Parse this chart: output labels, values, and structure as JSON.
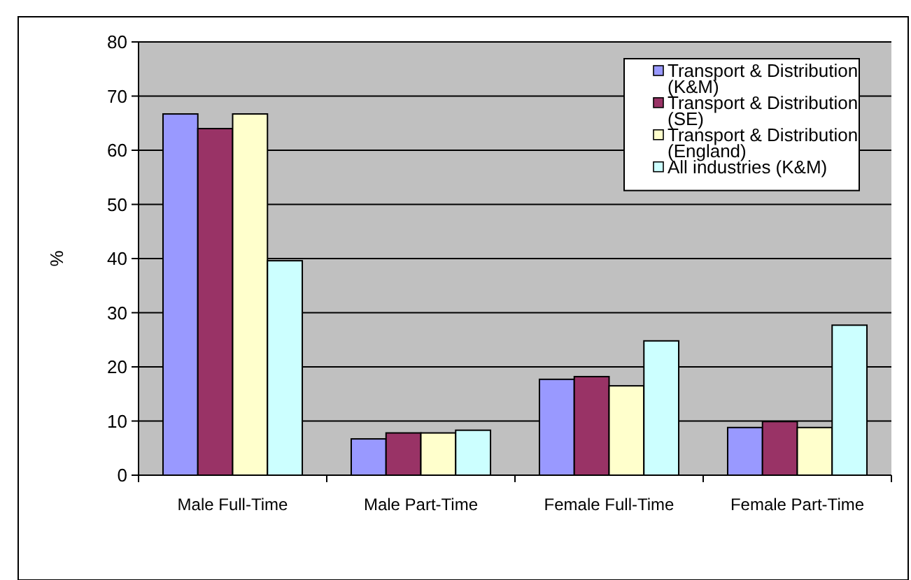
{
  "chart_data": {
    "type": "bar",
    "ylabel": "%",
    "categories": [
      "Male Full-Time",
      "Male Part-Time",
      "Female Full-Time",
      "Female Part-Time"
    ],
    "series": [
      {
        "name": "Transport & Distribution (K&M)",
        "color": "#9999ff",
        "values": [
          66.7,
          6.7,
          17.7,
          8.8
        ]
      },
      {
        "name": "Transport & Distribution (SE)",
        "color": "#993366",
        "values": [
          64,
          7.8,
          18.2,
          9.9
        ]
      },
      {
        "name": "Transport & Distribution (England)",
        "color": "#ffffcc",
        "values": [
          66.7,
          7.8,
          16.5,
          8.8
        ]
      },
      {
        "name": "All industries (K&M)",
        "color": "#ccffff",
        "values": [
          39.6,
          8.3,
          24.8,
          27.7
        ]
      }
    ],
    "ylim": [
      0,
      80
    ],
    "yticks": [
      0,
      10,
      20,
      30,
      40,
      50,
      60,
      70,
      80
    ],
    "grid": "y",
    "legend": "top right"
  }
}
